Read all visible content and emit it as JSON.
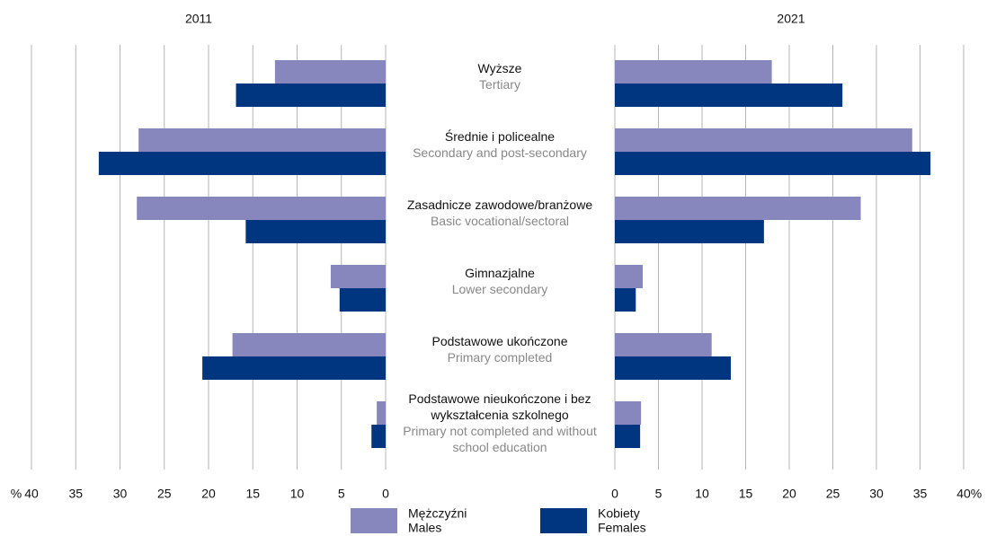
{
  "chart_data": {
    "type": "bar",
    "orientation": "horizontal",
    "unit": "%",
    "categories": [
      "Wyższe",
      "Średnie i policealne",
      "Zasadnicze zawodowe/branżowe",
      "Gimnazjalne",
      "Podstawowe ukończone",
      "Podstawowe nieukończone i bez wykształcenia szkolnego"
    ],
    "categories_en": [
      "Tertiary",
      "Secondary and post-secondary",
      "Basic vocational/sectoral",
      "Lower secondary",
      "Primary completed",
      "Primary not completed and without school education"
    ],
    "legend": [
      {
        "name": "Mężczyźni",
        "name_en": "Males",
        "color": "#8787bd"
      },
      {
        "name": "Kobiety",
        "name_en": "Females",
        "color": "#003580"
      }
    ],
    "grid": true,
    "panels": [
      {
        "title": "2011",
        "direction": "left",
        "series": [
          {
            "values": [
              12.5,
              27.9,
              28.1,
              6.2,
              17.3,
              1.0
            ]
          },
          {
            "values": [
              16.9,
              32.4,
              15.8,
              5.2,
              20.7,
              1.6
            ]
          }
        ],
        "xlim": [
          0,
          40
        ],
        "xticks": [
          0,
          5,
          10,
          15,
          20,
          25,
          30,
          35,
          40
        ]
      },
      {
        "title": "2021",
        "direction": "right",
        "series": [
          {
            "values": [
              18.0,
              34.1,
              28.2,
              3.2,
              11.1,
              3.0
            ]
          },
          {
            "values": [
              26.1,
              36.2,
              17.1,
              2.4,
              13.3,
              2.9
            ]
          }
        ],
        "xlim": [
          0,
          40
        ],
        "xticks": [
          0,
          5,
          10,
          15,
          20,
          25,
          30,
          35,
          40
        ]
      }
    ]
  }
}
